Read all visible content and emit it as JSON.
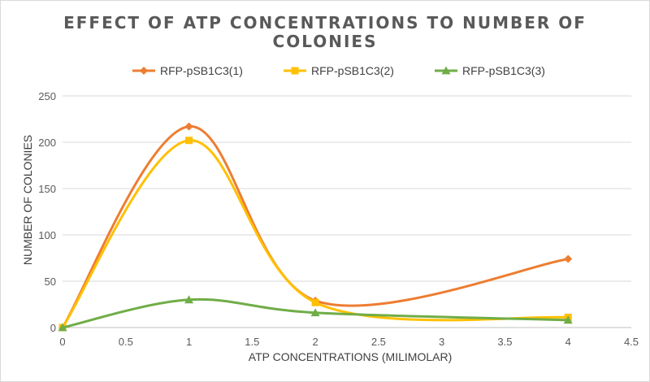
{
  "chart_data": {
    "type": "line",
    "title": "EFFECT OF ATP CONCENTRATIONS TO NUMBER OF COLONIES",
    "xlabel": "ATP CONCENTRATIONS (MILIMOLAR)",
    "ylabel": "NUMBER OF COLONIES",
    "xlim": [
      0,
      4.5
    ],
    "ylim": [
      0,
      250
    ],
    "x_ticks": [
      "0",
      "0.5",
      "1",
      "1.5",
      "2",
      "2.5",
      "3",
      "3.5",
      "4",
      "4.5"
    ],
    "y_ticks": [
      "0",
      "50",
      "100",
      "150",
      "200",
      "250"
    ],
    "grid": "horizontal",
    "legend_position": "top",
    "smooth": true,
    "series": [
      {
        "name": "RFP-pSB1C3(1)",
        "color": "#ED7D31",
        "marker": "diamond",
        "x": [
          0,
          1,
          2,
          4
        ],
        "y": [
          0,
          217,
          29,
          74
        ]
      },
      {
        "name": "RFP-pSB1C3(2)",
        "color": "#FFC000",
        "marker": "square",
        "x": [
          0,
          1,
          2,
          4
        ],
        "y": [
          0,
          202,
          27,
          11
        ]
      },
      {
        "name": "RFP-pSB1C3(3)",
        "color": "#70AD47",
        "marker": "triangle",
        "x": [
          0,
          1,
          2,
          4
        ],
        "y": [
          0,
          30,
          16,
          8
        ]
      }
    ]
  }
}
